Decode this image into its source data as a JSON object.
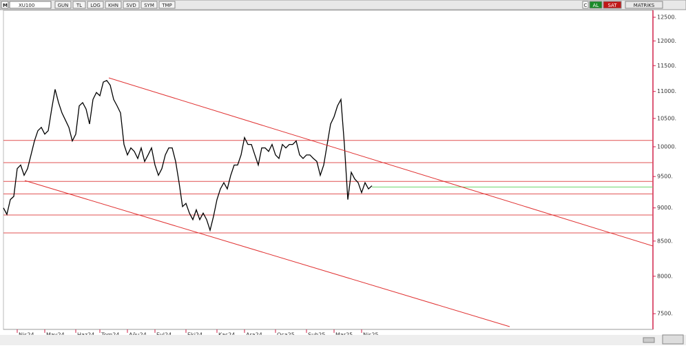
{
  "toolbar": {
    "symbol_icon": "M",
    "symbol": "XU100",
    "buttons": [
      "GUN",
      "TL",
      "LOG",
      "KHN",
      "SVD",
      "SYM",
      "TMP"
    ],
    "right": [
      "C",
      "AL",
      "SAT",
      "MATRiKS"
    ]
  },
  "chart_data": {
    "type": "line",
    "log": true,
    "categories": [
      null,
      null,
      null,
      null,
      "Nis24",
      null,
      null,
      null,
      null,
      null,
      null,
      null,
      "May24",
      null,
      null,
      null,
      null,
      null,
      null,
      null,
      null,
      "Haz24",
      null,
      null,
      null,
      null,
      null,
      null,
      "Tem24",
      null,
      null,
      null,
      null,
      null,
      null,
      null,
      "Ağu24",
      null,
      null,
      null,
      null,
      null,
      null,
      null,
      "Eyl24",
      null,
      null,
      null,
      null,
      null,
      null,
      null,
      null,
      "Eki24",
      null,
      null,
      null,
      null,
      null,
      null,
      null,
      null,
      "Kas24",
      null,
      null,
      null,
      null,
      null,
      null,
      null,
      "Ara24",
      null,
      null,
      null,
      null,
      null,
      null,
      null,
      null,
      "Oca25",
      null,
      null,
      null,
      null,
      null,
      null,
      null,
      null,
      "Şub25",
      null,
      null,
      null,
      null,
      null,
      null,
      null,
      "Mar25",
      null,
      null,
      null,
      null,
      null,
      null,
      null,
      "Nis25",
      null,
      null,
      null
    ],
    "series": [
      {
        "color": "#000000",
        "values": [
          9000,
          8900,
          9130,
          9180,
          9630,
          9690,
          9520,
          9630,
          9860,
          10100,
          10280,
          10340,
          10220,
          10280,
          10670,
          11040,
          10790,
          10600,
          10470,
          10340,
          10100,
          10220,
          10730,
          10790,
          10670,
          10400,
          10850,
          10980,
          10920,
          11180,
          11210,
          11120,
          10850,
          10730,
          10600,
          10040,
          9860,
          9980,
          9920,
          9800,
          9980,
          9750,
          9860,
          9980,
          9690,
          9520,
          9630,
          9860,
          9980,
          9980,
          9750,
          9400,
          9020,
          9070,
          8920,
          8820,
          8970,
          8820,
          8920,
          8820,
          8660,
          8870,
          9130,
          9300,
          9400,
          9300,
          9520,
          9690,
          9690,
          9860,
          10160,
          10040,
          10040,
          9860,
          9690,
          9980,
          9980,
          9920,
          10040,
          9860,
          9800,
          10040,
          9980,
          10040,
          10040,
          10100,
          9860,
          9800,
          9860,
          9860,
          9800,
          9750,
          9520,
          9690,
          10040,
          10400,
          10530,
          10730,
          10850,
          10040,
          9130,
          9570,
          9460,
          9400,
          9240,
          9400,
          9300,
          9350
        ]
      }
    ],
    "reference_lines": [
      {
        "value": 10110,
        "color": "#e05050"
      },
      {
        "value": 9730,
        "color": "#e05050"
      },
      {
        "value": 9420,
        "color": "#e05050"
      },
      {
        "value": 9220,
        "color": "#e05050"
      },
      {
        "value": 8890,
        "color": "#e05050"
      },
      {
        "value": 8620,
        "color": "#e05050"
      },
      {
        "value": 9330,
        "color": "#6ad46a"
      }
    ],
    "ylim": [
      7300,
      12650
    ],
    "yticks": [
      {
        "value": 7500,
        "label": "7500."
      },
      {
        "value": 8000,
        "label": "8000."
      },
      {
        "value": 8500,
        "label": "8500."
      },
      {
        "value": 9000,
        "label": "9000."
      },
      {
        "value": 9500,
        "label": "9500."
      },
      {
        "value": 10000,
        "label": "10000."
      },
      {
        "value": 10500,
        "label": "10500."
      },
      {
        "value": 11000,
        "label": "11000."
      },
      {
        "value": 11500,
        "label": "11500."
      },
      {
        "value": 12000,
        "label": "12000."
      },
      {
        "value": 12500,
        "label": "12500."
      }
    ]
  }
}
